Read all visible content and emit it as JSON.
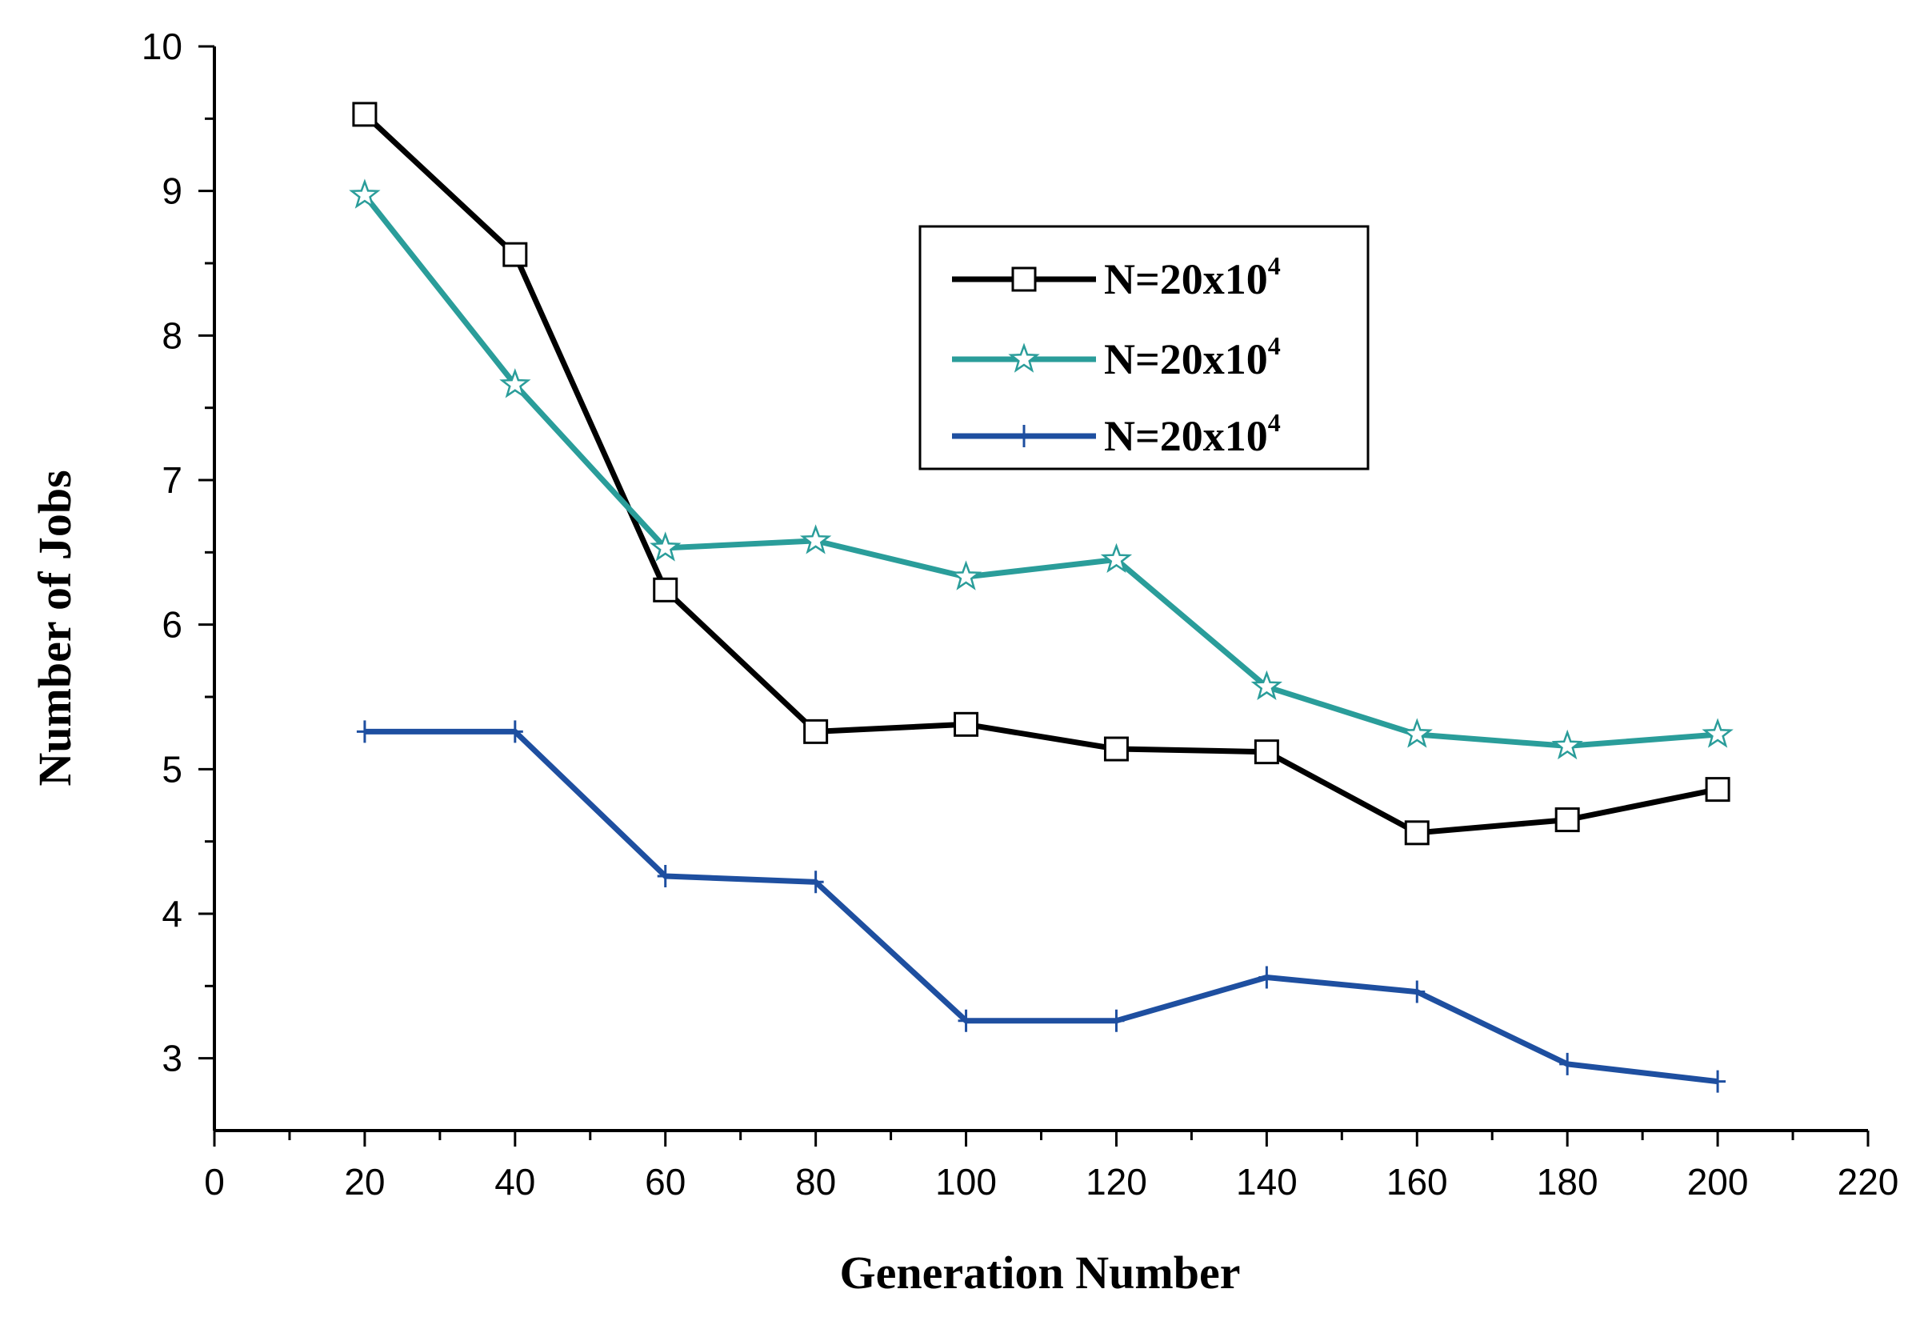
{
  "chart_data": {
    "type": "line",
    "title": "",
    "xlabel": "Generation Number",
    "ylabel": "Number of Jobs",
    "xlim": [
      0,
      220
    ],
    "ylim": [
      2.5,
      10
    ],
    "x_ticks": [
      0,
      20,
      40,
      60,
      80,
      100,
      120,
      140,
      160,
      180,
      200,
      220
    ],
    "y_ticks": [
      3,
      4,
      5,
      6,
      7,
      8,
      9,
      10
    ],
    "x_tick_labels": [
      "0",
      "20",
      "40",
      "60",
      "80",
      "100",
      "120",
      "140",
      "160",
      "180",
      "200",
      "220"
    ],
    "y_tick_labels": [
      "3",
      "4",
      "5",
      "6",
      "7",
      "8",
      "9",
      "10"
    ],
    "grid": false,
    "legend_position": "top-right",
    "x": [
      20,
      40,
      60,
      80,
      100,
      120,
      140,
      160,
      180,
      200
    ],
    "series": [
      {
        "name": "N=20x10",
        "name_superscript": "4",
        "color": "#000000",
        "marker": "square",
        "values": [
          9.53,
          8.56,
          6.24,
          5.26,
          5.31,
          5.14,
          5.12,
          4.56,
          4.65,
          4.86
        ]
      },
      {
        "name": "N=20x10",
        "name_superscript": "4",
        "color": "#2a9d9a",
        "marker": "star",
        "values": [
          8.97,
          7.66,
          6.53,
          6.58,
          6.33,
          6.45,
          5.57,
          5.24,
          5.16,
          5.24
        ]
      },
      {
        "name": "N=20x10",
        "name_superscript": "4",
        "color": "#1e4fa0",
        "marker": "plus",
        "values": [
          5.26,
          5.26,
          4.26,
          4.22,
          3.26,
          3.26,
          3.56,
          3.46,
          2.96,
          2.84
        ]
      }
    ]
  }
}
